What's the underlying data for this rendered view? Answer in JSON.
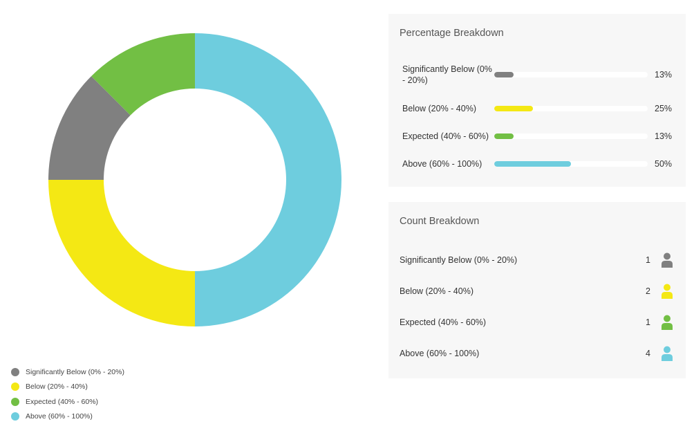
{
  "chart_data": {
    "type": "pie",
    "title": "",
    "categories": [
      "Significantly Below (0% - 20%)",
      "Below (20% - 40%)",
      "Expected (40% - 60%)",
      "Above (60% - 100%)"
    ],
    "values": [
      1,
      2,
      1,
      4
    ],
    "colors": [
      "#808080",
      "#f4e814",
      "#72bf44",
      "#6ecdde"
    ],
    "donut": true,
    "legend_position": "bottom-left"
  },
  "legend": [
    {
      "label": "Significantly Below (0% - 20%)",
      "color": "#808080"
    },
    {
      "label": "Below (20% - 40%)",
      "color": "#f4e814"
    },
    {
      "label": "Expected (40% - 60%)",
      "color": "#72bf44"
    },
    {
      "label": "Above (60% - 100%)",
      "color": "#6ecdde"
    }
  ],
  "percentage_breakdown": {
    "title": "Percentage Breakdown",
    "track_color": "#ffffff",
    "rows": [
      {
        "label": "Significantly Below (0% - 20%)",
        "value": "13%",
        "fraction": 0.125,
        "color": "#808080"
      },
      {
        "label": "Below (20% - 40%)",
        "value": "25%",
        "fraction": 0.25,
        "color": "#f4e814"
      },
      {
        "label": "Expected (40% - 60%)",
        "value": "13%",
        "fraction": 0.125,
        "color": "#72bf44"
      },
      {
        "label": "Above (60% - 100%)",
        "value": "50%",
        "fraction": 0.5,
        "color": "#6ecdde"
      }
    ]
  },
  "count_breakdown": {
    "title": "Count Breakdown",
    "rows": [
      {
        "label": "Significantly Below (0% - 20%)",
        "count": "1",
        "icon": "person-icon",
        "color": "#808080"
      },
      {
        "label": "Below (20% - 40%)",
        "count": "2",
        "icon": "person-icon",
        "color": "#f4e814"
      },
      {
        "label": "Expected (40% - 60%)",
        "count": "1",
        "icon": "person-icon",
        "color": "#72bf44"
      },
      {
        "label": "Above (60% - 100%)",
        "count": "4",
        "icon": "person-icon",
        "color": "#6ecdde"
      }
    ]
  }
}
